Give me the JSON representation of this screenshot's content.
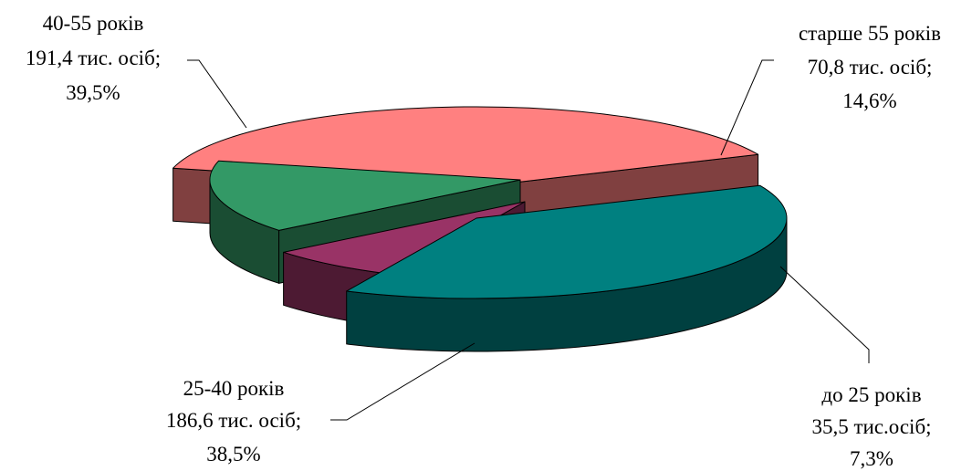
{
  "chart_data": {
    "type": "pie",
    "title": "",
    "slices": [
      {
        "key": "s40_55",
        "label": "40-55 років",
        "amount": "191,4 тис. осіб;",
        "percent_label": "39,5%",
        "value": 39.5,
        "color": "#ff8080",
        "side_color": "#804040",
        "exploded": false
      },
      {
        "key": "s55plus",
        "label": "старше 55 років",
        "amount": "70,8 тис. осіб;",
        "percent_label": "14,6%",
        "value": 14.6,
        "color": "#339966",
        "side_color": "#1a4d33",
        "exploded": true
      },
      {
        "key": "s25",
        "label": "до 25 років",
        "amount": "35,5 тис.осіб;",
        "percent_label": "7,3%",
        "value": 7.3,
        "color": "#993366",
        "side_color": "#4d1a33",
        "exploded": true
      },
      {
        "key": "s25_40",
        "label": "25-40 років",
        "amount": "186,6 тис. осіб;",
        "percent_label": "38,5%",
        "value": 38.5,
        "color": "#008080",
        "side_color": "#004040",
        "exploded": true
      }
    ]
  }
}
